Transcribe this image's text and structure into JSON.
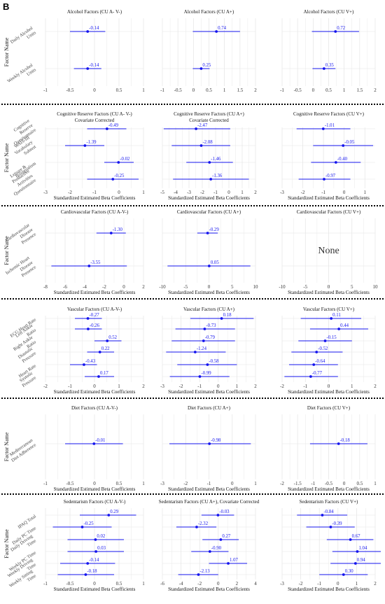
{
  "panel_label": "B",
  "colors": {
    "mark": "#1414ee",
    "dotted": "#000000",
    "grid": "#e4e4e4",
    "axis_text": "#333333"
  },
  "chart_data": [
    {
      "type": "forest",
      "ylabel": "Factor Name",
      "xlabel": "",
      "row_labels": [
        "Daily Alcohol Units",
        "Weekly Alcohol Units"
      ],
      "panels": [
        {
          "title": "Alcohol Factors (CU A- V-)",
          "xlim": [
            -1,
            1
          ],
          "ticks": [
            "-1",
            "-0.5",
            "0",
            "0.5",
            "1"
          ],
          "estimates": [
            -0.14,
            -0.14
          ],
          "ci": [
            [
              -0.5,
              0.22
            ],
            [
              -0.42,
              0.14
            ]
          ],
          "labels": [
            "-0.14",
            "-0.14"
          ]
        },
        {
          "title": "Alcohol Factors (CU A+)",
          "xlim": [
            -1,
            2
          ],
          "ticks": [
            "-1",
            "-0.5",
            "0",
            "0.5",
            "1",
            "1.5",
            "2"
          ],
          "estimates": [
            0.74,
            0.25
          ],
          "ci": [
            [
              -0.02,
              1.5
            ],
            [
              -0.02,
              0.52
            ]
          ],
          "labels": [
            "0.74",
            "0.25"
          ]
        },
        {
          "title": "Alcohol Factors (CU V+)",
          "xlim": [
            -1,
            2
          ],
          "ticks": [
            "-1",
            "-0.5",
            "0",
            "0.5",
            "1",
            "1.5",
            "2"
          ],
          "estimates": [
            0.72,
            0.35
          ],
          "ci": [
            [
              -0.04,
              1.48
            ],
            [
              -0.02,
              0.72
            ]
          ],
          "labels": [
            "0.72",
            "0.35"
          ]
        }
      ]
    },
    {
      "type": "forest",
      "ylabel": "Factor Name",
      "xlabel": "Standardized Estimated Beta Coefficients",
      "row_labels": [
        "Cognitive Reserve Questionnaire",
        "WAIS-III Vocabulary Subtest",
        "Bilingualism",
        "Leisure & Productive Activities Questionnaire"
      ],
      "panels": [
        {
          "title": "Cognitive Reserve Factors (CU A- V-)",
          "title2": "Covariate Corrected",
          "xlim": [
            -3,
            1
          ],
          "ticks": [
            "-3",
            "-2",
            "-1",
            "0",
            "1"
          ],
          "estimates": [
            -0.49,
            -1.39,
            -0.02,
            -0.25
          ],
          "ci": [
            [
              -1.3,
              0.3
            ],
            [
              -2.2,
              -0.6
            ],
            [
              -0.6,
              0.6
            ],
            [
              -1.3,
              0.8
            ]
          ],
          "labels": [
            "-0.49",
            "-1.39",
            "-0.02",
            "-0.25"
          ]
        },
        {
          "title": "Cognitive Reserve Factors (CU A+)",
          "title2": "Covariate Corrected",
          "xlim": [
            -5,
            2
          ],
          "ticks": [
            "-5",
            "-4",
            "-3",
            "-2",
            "-1",
            "0",
            "1",
            "2"
          ],
          "estimates": [
            -2.47,
            -2.08,
            -1.46,
            -1.36
          ],
          "ci": [
            [
              -4.9,
              0.1
            ],
            [
              -4.3,
              0.1
            ],
            [
              -3.2,
              0.3
            ],
            [
              -4.2,
              1.5
            ]
          ],
          "labels": [
            "-2.47",
            "-2.08",
            "-1.46",
            "-1.36"
          ]
        },
        {
          "title": "Cognitive Reserve Factors (CU V+)",
          "xlim": [
            -3,
            1.5
          ],
          "ticks": [
            "-3",
            "-2",
            "-1",
            "0",
            "1"
          ],
          "estimates": [
            -1.01,
            -0.05,
            -0.4,
            -0.97
          ],
          "ci": [
            [
              -2.3,
              0.3
            ],
            [
              -1.5,
              1.4
            ],
            [
              -1.6,
              0.8
            ],
            [
              -2.2,
              0.3
            ]
          ],
          "labels": [
            "-1.01",
            "-0.05",
            "-0.40",
            "-0.97"
          ]
        }
      ]
    },
    {
      "type": "forest",
      "ylabel": "Factor Name",
      "xlabel": "Standardized Estimated Beta Coefficients",
      "row_labels": [
        "Cardiovascular Disease Presence",
        "Ischemic Heart Disease Presence"
      ],
      "panels": [
        {
          "title": "Cardiovascular Factors (CU A-V-)",
          "xlim": [
            -8,
            2
          ],
          "ticks": [
            "-8",
            "-6",
            "-4",
            "-2",
            "0",
            "2"
          ],
          "estimates": [
            -1.3,
            -3.55
          ],
          "ci": [
            [
              -2.8,
              0.2
            ],
            [
              -7.4,
              0.3
            ]
          ],
          "labels": [
            "-1.30",
            "-3.55"
          ]
        },
        {
          "title": "Cardiovascular Factors (CU A+)",
          "xlim": [
            -10,
            10
          ],
          "ticks": [
            "-10",
            "-5",
            "0",
            "5",
            "10"
          ],
          "estimates": [
            -0.29,
            0.05
          ],
          "ci": [
            [
              -2.5,
              1.9
            ],
            [
              -8.9,
              8.9
            ]
          ],
          "labels": [
            "-0.29",
            "0.05"
          ]
        },
        {
          "title": "Cardiovascular Factors (CU V+)",
          "xlim": [
            -10,
            10
          ],
          "ticks": [
            "-10",
            "-5",
            "0",
            "5",
            "10"
          ],
          "estimates": [],
          "ci": [],
          "labels": [],
          "empty_text": "None"
        }
      ]
    },
    {
      "type": "forest",
      "ylabel": "",
      "xlabel": "Standardized Estimated Beta Coefficients",
      "row_labels": [
        "ECG Heart Rate",
        "Left Ankle Ratio",
        "Right Ankle Ratio",
        "Diastolic Pressure",
        "Heart Rate",
        "Systolic Pressure"
      ],
      "panels": [
        {
          "title": "Vascular Factors (CU A-V-)",
          "xlim": [
            -2,
            2
          ],
          "ticks": [
            "-2",
            "-1",
            "0",
            "1",
            "2"
          ],
          "estimates": [
            -0.27,
            -0.26,
            0.52,
            0.22,
            -0.43,
            0.17
          ],
          "ci": [
            [
              -0.8,
              0.3
            ],
            [
              -0.8,
              0.3
            ],
            [
              0.0,
              1.1
            ],
            [
              -0.3,
              0.8
            ],
            [
              -1.0,
              0.1
            ],
            [
              -0.4,
              0.8
            ]
          ],
          "labels": [
            "-0.27",
            "-0.26",
            "0.52",
            "0.22",
            "-0.43",
            "0.17"
          ]
        },
        {
          "title": "Vascular Factors (CU A+)",
          "xlim": [
            -3,
            2
          ],
          "ticks": [
            "-3",
            "-2",
            "-1",
            "0",
            "1",
            "2"
          ],
          "estimates": [
            0.18,
            -0.73,
            -0.79,
            -1.24,
            -0.58,
            -0.99
          ],
          "ci": [
            [
              -1.5,
              1.9
            ],
            [
              -2.3,
              0.9
            ],
            [
              -2.5,
              0.9
            ],
            [
              -2.8,
              0.4
            ],
            [
              -2.2,
              1.0
            ],
            [
              -2.6,
              0.6
            ]
          ],
          "labels": [
            "0.18",
            "-0.73",
            "-0.79",
            "-1.24",
            "-0.58",
            "-0.99"
          ]
        },
        {
          "title": "Vascular Factors (CU V+)",
          "xlim": [
            -2,
            2
          ],
          "ticks": [
            "-2",
            "-1",
            "0",
            "1",
            "2"
          ],
          "estimates": [
            0.11,
            0.44,
            -0.15,
            -0.52,
            -0.64,
            -0.77
          ],
          "ci": [
            [
              -1.2,
              1.4
            ],
            [
              -0.8,
              1.7
            ],
            [
              -1.3,
              1.0
            ],
            [
              -1.6,
              0.6
            ],
            [
              -1.7,
              0.4
            ],
            [
              -1.9,
              0.4
            ]
          ],
          "labels": [
            "0.11",
            "0.44",
            "-0.15",
            "-0.52",
            "-0.64",
            "-0.77"
          ]
        }
      ]
    },
    {
      "type": "forest",
      "ylabel": "Factor Name",
      "xlabel": "Standardized Estimated Beta Coefficients",
      "row_labels": [
        "Mediterranean Diet Adherence"
      ],
      "panels": [
        {
          "title": "Diet Factors (CU A-V-)",
          "xlim": [
            -1,
            1
          ],
          "ticks": [
            "-1",
            "-0.5",
            "0",
            "0.5",
            "1"
          ],
          "estimates": [
            -0.01
          ],
          "ci": [
            [
              -0.6,
              0.58
            ]
          ],
          "labels": [
            "-0.01"
          ]
        },
        {
          "title": "Diet Factors (CU A+)",
          "xlim": [
            -3,
            1
          ],
          "ticks": [
            "-3",
            "-2",
            "-1",
            "0",
            "1"
          ],
          "estimates": [
            -0.98
          ],
          "ci": [
            [
              -2.7,
              0.8
            ]
          ],
          "labels": [
            "-0.98"
          ]
        },
        {
          "title": "Diet Factors (CU V+)",
          "xlim": [
            -2,
            1
          ],
          "ticks": [
            "-2",
            "-1.5",
            "-1",
            "-0.5",
            "0",
            "0.5",
            "1"
          ],
          "estimates": [
            -0.18
          ],
          "ci": [
            [
              -1.1,
              0.75
            ]
          ],
          "labels": [
            "-0.18"
          ]
        }
      ]
    },
    {
      "type": "forest",
      "ylabel": "Factor Name",
      "xlabel": "Standardized Estimated Beta Coefficients",
      "row_labels": [
        "IPAQ Total",
        "Daily PC Time",
        "Daily Driving Time",
        "Weekly PC Time",
        "Weekly Driving Time",
        "Weekly Sitting Time"
      ],
      "panels": [
        {
          "title": "Sedentarism Factors (CU A-V-)",
          "xlim": [
            -1,
            1
          ],
          "ticks": [
            "-1",
            "-0.5",
            "0",
            "0.5",
            "1"
          ],
          "estimates": [
            0.29,
            -0.25,
            0.02,
            0.03,
            -0.14,
            -0.18
          ],
          "ci": [
            [
              -0.3,
              0.85
            ],
            [
              -0.85,
              0.35
            ],
            [
              -0.55,
              0.6
            ],
            [
              -0.55,
              0.6
            ],
            [
              -0.7,
              0.42
            ],
            [
              -0.75,
              0.4
            ]
          ],
          "labels": [
            "0.29",
            "-0.25",
            "0.02",
            "0.03",
            "-0.14",
            "-0.18"
          ]
        },
        {
          "title": "Sedentarism Factors (CU A+), Covariate Corrected",
          "xlim": [
            -6,
            4
          ],
          "ticks": [
            "-6",
            "-4",
            "-2",
            "0",
            "2",
            "4"
          ],
          "estimates": [
            -0.03,
            -2.32,
            0.27,
            -0.9,
            1.07,
            -2.13
          ],
          "ci": [
            [
              -1.8,
              1.7
            ],
            [
              -4.5,
              -0.2
            ],
            [
              -1.7,
              2.2
            ],
            [
              -2.9,
              1.1
            ],
            [
              -1.0,
              3.1
            ],
            [
              -4.3,
              0.0
            ]
          ],
          "labels": [
            "-0.03",
            "-2.32",
            "0.27",
            "-0.90",
            "1.07",
            "-2.13"
          ]
        },
        {
          "title": "Sedentarism Factors (CU V+)",
          "xlim": [
            -3,
            2
          ],
          "ticks": [
            "-3",
            "-2",
            "-1",
            "0",
            "1",
            "2"
          ],
          "estimates": [
            -0.84,
            -0.39,
            0.67,
            1.04,
            0.94,
            0.3
          ],
          "ci": [
            [
              -2.2,
              0.5
            ],
            [
              -1.7,
              0.9
            ],
            [
              -0.6,
              1.9
            ],
            [
              -0.3,
              2.3
            ],
            [
              -0.4,
              2.3
            ],
            [
              -1.0,
              1.6
            ]
          ],
          "labels": [
            "-0.84",
            "-0.39",
            "0.67",
            "1.04",
            "0.94",
            "0.30"
          ]
        }
      ]
    }
  ]
}
